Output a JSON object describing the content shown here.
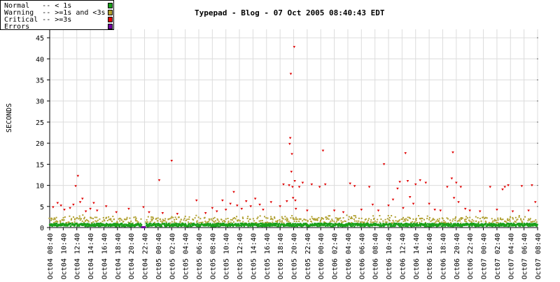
{
  "title": "Typepad - Blog - 07 Oct 2005 08:40:43 EDT",
  "legend": [
    {
      "label": "Normal   -- < 1s",
      "color": "#1aa01a"
    },
    {
      "label": "Warning  -- >=1s and <3s",
      "color": "#b0a030"
    },
    {
      "label": "Critical -- >=3s",
      "color": "#e00000"
    },
    {
      "label": "Errors",
      "color": "#7000a0"
    }
  ],
  "chart_data": {
    "type": "scatter",
    "title": "Typepad - Blog - 07 Oct 2005 08:40:43 EDT",
    "ylabel": "SECONDS",
    "xlabel": "",
    "ylim": [
      0,
      47
    ],
    "yticks": [
      0,
      5,
      10,
      15,
      20,
      25,
      30,
      35,
      40,
      45
    ],
    "xticks": [
      "Oct04 08:40",
      "Oct04 10:40",
      "Oct04 12:40",
      "Oct04 14:40",
      "Oct04 16:40",
      "Oct04 18:40",
      "Oct04 20:40",
      "Oct04 22:40",
      "Oct05 00:40",
      "Oct05 02:40",
      "Oct05 04:40",
      "Oct05 06:40",
      "Oct05 08:40",
      "Oct05 10:40",
      "Oct05 12:40",
      "Oct05 14:40",
      "Oct05 16:40",
      "Oct05 18:40",
      "Oct05 20:40",
      "Oct05 22:40",
      "Oct06 00:40",
      "Oct06 02:40",
      "Oct06 04:40",
      "Oct06 06:40",
      "Oct06 08:40",
      "Oct06 10:40",
      "Oct06 12:40",
      "Oct06 14:40",
      "Oct06 16:40",
      "Oct06 18:40",
      "Oct06 20:40",
      "Oct06 22:40",
      "Oct07 00:40",
      "Oct07 02:40",
      "Oct07 04:40",
      "Oct07 06:40",
      "Oct07 08:40"
    ],
    "grid": true,
    "series": [
      {
        "name": "Critical",
        "color": "#e00000",
        "points": [
          [
            "Oct04 09:10",
            4.8
          ],
          [
            "Oct04 09:50",
            5.8
          ],
          [
            "Oct04 10:20",
            5.2
          ],
          [
            "Oct04 10:50",
            4.2
          ],
          [
            "Oct04 11:40",
            4.6
          ],
          [
            "Oct04 12:10",
            5.4
          ],
          [
            "Oct04 12:30",
            9.8
          ],
          [
            "Oct04 12:50",
            12.2
          ],
          [
            "Oct04 13:10",
            6.0
          ],
          [
            "Oct04 13:30",
            6.8
          ],
          [
            "Oct04 14:00",
            3.8
          ],
          [
            "Oct04 14:40",
            4.4
          ],
          [
            "Oct04 15:10",
            5.8
          ],
          [
            "Oct04 15:40",
            4.0
          ],
          [
            "Oct04 17:00",
            5.0
          ],
          [
            "Oct04 18:30",
            3.6
          ],
          [
            "Oct04 20:20",
            4.4
          ],
          [
            "Oct04 22:30",
            4.8
          ],
          [
            "Oct04 23:20",
            3.6
          ],
          [
            "Oct05 00:50",
            11.2
          ],
          [
            "Oct05 01:20",
            3.4
          ],
          [
            "Oct05 02:40",
            15.8
          ],
          [
            "Oct05 03:30",
            3.2
          ],
          [
            "Oct05 06:20",
            6.4
          ],
          [
            "Oct05 07:40",
            3.4
          ],
          [
            "Oct05 08:40",
            4.6
          ],
          [
            "Oct05 09:20",
            3.8
          ],
          [
            "Oct05 10:10",
            6.4
          ],
          [
            "Oct05 10:40",
            4.2
          ],
          [
            "Oct05 11:20",
            5.6
          ],
          [
            "Oct05 11:50",
            8.4
          ],
          [
            "Oct05 12:20",
            5.2
          ],
          [
            "Oct05 13:00",
            4.4
          ],
          [
            "Oct05 13:40",
            6.2
          ],
          [
            "Oct05 14:20",
            5.0
          ],
          [
            "Oct05 15:00",
            6.8
          ],
          [
            "Oct05 15:40",
            5.4
          ],
          [
            "Oct05 16:10",
            4.2
          ],
          [
            "Oct05 17:20",
            6.0
          ],
          [
            "Oct05 18:40",
            5.0
          ],
          [
            "Oct05 19:10",
            10.2
          ],
          [
            "Oct05 19:40",
            6.2
          ],
          [
            "Oct05 20:00",
            10.0
          ],
          [
            "Oct05 20:05",
            19.8
          ],
          [
            "Oct05 20:10",
            21.2
          ],
          [
            "Oct05 20:15",
            36.4
          ],
          [
            "Oct05 20:20",
            13.2
          ],
          [
            "Oct05 20:25",
            17.4
          ],
          [
            "Oct05 20:30",
            9.6
          ],
          [
            "Oct05 20:35",
            7.0
          ],
          [
            "Oct05 20:45",
            42.8
          ],
          [
            "Oct05 20:50",
            11.0
          ],
          [
            "Oct05 20:55",
            6.4
          ],
          [
            "Oct05 21:00",
            4.4
          ],
          [
            "Oct05 21:30",
            9.6
          ],
          [
            "Oct05 22:00",
            10.6
          ],
          [
            "Oct05 22:40",
            4.0
          ],
          [
            "Oct05 23:20",
            10.2
          ],
          [
            "Oct06 00:30",
            9.6
          ],
          [
            "Oct06 01:00",
            18.2
          ],
          [
            "Oct06 01:20",
            10.2
          ],
          [
            "Oct06 02:40",
            4.0
          ],
          [
            "Oct06 04:00",
            3.6
          ],
          [
            "Oct06 05:00",
            10.4
          ],
          [
            "Oct06 05:40",
            9.8
          ],
          [
            "Oct06 06:40",
            4.2
          ],
          [
            "Oct06 07:50",
            9.6
          ],
          [
            "Oct06 08:20",
            5.4
          ],
          [
            "Oct06 09:10",
            4.0
          ],
          [
            "Oct06 10:00",
            15.0
          ],
          [
            "Oct06 10:40",
            5.2
          ],
          [
            "Oct06 11:20",
            6.6
          ],
          [
            "Oct06 12:00",
            9.2
          ],
          [
            "Oct06 12:20",
            10.8
          ],
          [
            "Oct06 12:50",
            4.6
          ],
          [
            "Oct06 13:10",
            17.6
          ],
          [
            "Oct06 13:30",
            11.0
          ],
          [
            "Oct06 13:50",
            7.2
          ],
          [
            "Oct06 14:20",
            5.6
          ],
          [
            "Oct06 14:40",
            10.2
          ],
          [
            "Oct06 15:20",
            11.2
          ],
          [
            "Oct06 16:10",
            10.6
          ],
          [
            "Oct06 16:40",
            5.6
          ],
          [
            "Oct06 17:30",
            4.2
          ],
          [
            "Oct06 18:20",
            4.0
          ],
          [
            "Oct06 19:20",
            9.6
          ],
          [
            "Oct06 20:00",
            11.6
          ],
          [
            "Oct06 20:10",
            17.8
          ],
          [
            "Oct06 20:20",
            7.0
          ],
          [
            "Oct06 20:40",
            10.6
          ],
          [
            "Oct06 21:00",
            6.0
          ],
          [
            "Oct06 21:20",
            9.6
          ],
          [
            "Oct06 22:00",
            4.4
          ],
          [
            "Oct06 22:40",
            4.0
          ],
          [
            "Oct07 00:10",
            3.8
          ],
          [
            "Oct07 01:40",
            9.6
          ],
          [
            "Oct07 02:40",
            4.2
          ],
          [
            "Oct07 03:30",
            9.0
          ],
          [
            "Oct07 03:50",
            9.6
          ],
          [
            "Oct07 04:20",
            10.0
          ],
          [
            "Oct07 05:00",
            3.8
          ],
          [
            "Oct07 06:20",
            9.8
          ],
          [
            "Oct07 07:20",
            4.0
          ],
          [
            "Oct07 07:50",
            10.0
          ],
          [
            "Oct07 08:20",
            6.0
          ]
        ]
      }
    ],
    "normal_band": {
      "name": "Normal",
      "color": "#1aa01a",
      "min": 0.3,
      "max": 1.0
    },
    "warning_band": {
      "name": "Warning",
      "color": "#b0a030",
      "min": 1.0,
      "max": 3.0
    },
    "error_gap": {
      "name": "Errors",
      "color": "#7000a0",
      "from": "Oct04 22:10",
      "to": "Oct04 22:50",
      "value": 0
    }
  }
}
